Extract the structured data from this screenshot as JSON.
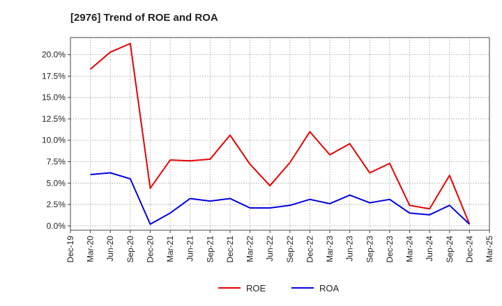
{
  "chart_data": {
    "type": "line",
    "title": "[2976]  Trend of ROE and ROA",
    "x": [
      "Dec-19",
      "Mar-20",
      "Jun-20",
      "Sep-20",
      "Dec-20",
      "Mar-21",
      "Jun-21",
      "Sep-21",
      "Dec-21",
      "Mar-22",
      "Jun-22",
      "Sep-22",
      "Dec-22",
      "Mar-23",
      "Jun-23",
      "Sep-23",
      "Dec-23",
      "Mar-24",
      "Jun-24",
      "Sep-24",
      "Dec-24",
      "Mar-25"
    ],
    "ylim": [
      -0.5,
      22.0
    ],
    "yticks": [
      0,
      2.5,
      5,
      7.5,
      10,
      12.5,
      15,
      17.5,
      20
    ],
    "ytick_labels": [
      "0.0%",
      "2.5%",
      "5.0%",
      "7.5%",
      "10.0%",
      "12.5%",
      "15.0%",
      "17.5%",
      "20.0%"
    ],
    "grid": true,
    "legend_position": "bottom-center",
    "series": [
      {
        "name": "ROE",
        "color": "#e60000",
        "values": [
          null,
          18.3,
          20.3,
          21.3,
          4.4,
          7.7,
          7.6,
          7.8,
          10.6,
          7.2,
          4.7,
          7.4,
          11.0,
          8.3,
          9.6,
          6.2,
          7.3,
          2.4,
          2.0,
          5.9,
          0.2,
          null
        ]
      },
      {
        "name": "ROA",
        "color": "#0000e6",
        "values": [
          null,
          6.0,
          6.2,
          5.5,
          0.2,
          1.5,
          3.2,
          2.9,
          3.2,
          2.1,
          2.1,
          2.4,
          3.1,
          2.6,
          3.6,
          2.7,
          3.1,
          1.5,
          1.3,
          2.4,
          0.2,
          null
        ]
      }
    ]
  }
}
